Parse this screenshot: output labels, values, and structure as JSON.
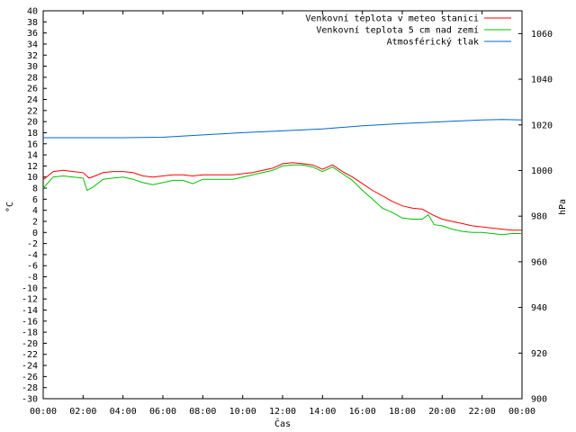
{
  "chart_data": {
    "type": "line",
    "xlabel": "Čas",
    "ylabel_left": "°C",
    "ylabel_right": "hPa",
    "x_ticks": [
      "00:00",
      "02:00",
      "04:00",
      "06:00",
      "08:00",
      "10:00",
      "12:00",
      "14:00",
      "16:00",
      "18:00",
      "20:00",
      "22:00",
      "00:00"
    ],
    "x_range_hours": [
      0,
      24
    ],
    "ylim_left": [
      -30,
      40
    ],
    "y_left_step": 2,
    "ylim_right": [
      900,
      1070
    ],
    "y_right_ticks": [
      900,
      920,
      940,
      960,
      980,
      1000,
      1020,
      1040,
      1060
    ],
    "legend_position": "top-right",
    "series": [
      {
        "name": "Venkovní teplota v meteo stanici",
        "color": "#ff0000",
        "axis": "left",
        "x": [
          0,
          0.5,
          1,
          1.5,
          2,
          2.3,
          2.6,
          3,
          3.5,
          4,
          4.5,
          5,
          5.5,
          6,
          6.5,
          7,
          7.5,
          8,
          8.5,
          9,
          9.5,
          10,
          10.5,
          11,
          11.5,
          12,
          12.5,
          13,
          13.5,
          14,
          14.5,
          15,
          15.5,
          16,
          16.5,
          17,
          17.5,
          18,
          18.5,
          19,
          19.5,
          20,
          20.5,
          21,
          21.5,
          22,
          22.5,
          23,
          23.5,
          24
        ],
        "y": [
          9.5,
          11.0,
          11.2,
          11.0,
          10.8,
          9.8,
          10.2,
          10.8,
          11.0,
          11.0,
          10.8,
          10.2,
          10.0,
          10.2,
          10.4,
          10.4,
          10.2,
          10.4,
          10.4,
          10.4,
          10.4,
          10.6,
          10.8,
          11.2,
          11.6,
          12.4,
          12.6,
          12.4,
          12.2,
          11.4,
          12.2,
          11.0,
          10.0,
          8.8,
          7.6,
          6.6,
          5.6,
          4.8,
          4.4,
          4.2,
          3.2,
          2.4,
          2.0,
          1.6,
          1.2,
          1.0,
          0.8,
          0.6,
          0.4,
          0.4
        ]
      },
      {
        "name": "Venkovní teplota 5 cm nad zemí",
        "color": "#00c000",
        "axis": "left",
        "x": [
          0,
          0.5,
          1,
          1.5,
          2,
          2.2,
          2.5,
          3,
          3.5,
          4,
          4.5,
          5,
          5.5,
          6,
          6.5,
          7,
          7.5,
          8,
          8.5,
          9,
          9.5,
          10,
          10.5,
          11,
          11.5,
          12,
          12.5,
          13,
          13.5,
          14,
          14.5,
          15,
          15.5,
          16,
          16.5,
          17,
          17.5,
          18,
          18.5,
          19,
          19.3,
          19.6,
          20,
          20.5,
          21,
          21.5,
          22,
          22.5,
          23,
          23.5,
          24
        ],
        "y": [
          8.0,
          10.0,
          10.2,
          10.0,
          9.8,
          7.6,
          8.2,
          9.6,
          9.8,
          10.0,
          9.6,
          9.0,
          8.6,
          9.0,
          9.4,
          9.4,
          8.8,
          9.6,
          9.6,
          9.6,
          9.6,
          10.0,
          10.4,
          10.8,
          11.2,
          12.0,
          12.2,
          12.2,
          11.8,
          11.0,
          11.8,
          10.6,
          9.4,
          7.6,
          6.0,
          4.4,
          3.6,
          2.6,
          2.4,
          2.4,
          3.2,
          1.4,
          1.2,
          0.6,
          0.2,
          0.0,
          0.0,
          -0.2,
          -0.4,
          -0.2,
          -0.2
        ]
      },
      {
        "name": "Atmosférický tlak",
        "color": "#0066cc",
        "axis": "right",
        "x": [
          0,
          2,
          4,
          6,
          8,
          10,
          12,
          14,
          16,
          18,
          20,
          22,
          23,
          24
        ],
        "y": [
          1014.4,
          1014.4,
          1014.4,
          1014.6,
          1015.6,
          1016.6,
          1017.4,
          1018.2,
          1019.6,
          1020.6,
          1021.4,
          1022.2,
          1022.4,
          1022.2
        ]
      }
    ]
  }
}
